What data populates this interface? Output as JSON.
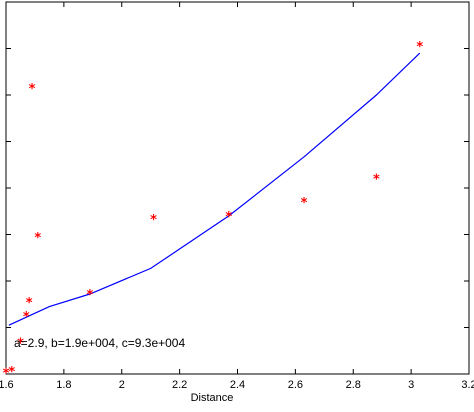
{
  "chart_data": {
    "type": "scatter",
    "title": "",
    "xlabel": "Distance",
    "ylabel": "",
    "xlim": [
      1.6,
      3.2
    ],
    "x_ticks": [
      "1.6",
      "1.8",
      "2",
      "2.2",
      "2.4",
      "2.6",
      "2.8",
      "3",
      "3.2"
    ],
    "grid": false,
    "annotation": "a=2.9, b=1.9e+004, c=9.3e+004",
    "colors": {
      "points": "#ff0000",
      "fit": "#0000ff",
      "axes": "#000000"
    },
    "series": [
      {
        "type": "scatter",
        "marker": "asterisk",
        "color": "#ff0000",
        "x": [
          1.6,
          1.62,
          1.65,
          1.67,
          1.68,
          1.69,
          1.71,
          1.89,
          2.11,
          2.37,
          2.63,
          2.88,
          3.03
        ],
        "y": [
          0.03,
          0.06,
          0.68,
          1.25,
          1.55,
          6.15,
          2.95,
          1.72,
          3.33,
          3.4,
          3.7,
          4.2,
          7.05
        ]
      },
      {
        "type": "line",
        "color": "#0000ff",
        "x": [
          1.61,
          1.75,
          1.89,
          2.1,
          2.37,
          2.63,
          2.88,
          3.03
        ],
        "y": [
          1.05,
          1.45,
          1.72,
          2.27,
          3.4,
          4.67,
          6.0,
          6.9
        ]
      }
    ]
  }
}
